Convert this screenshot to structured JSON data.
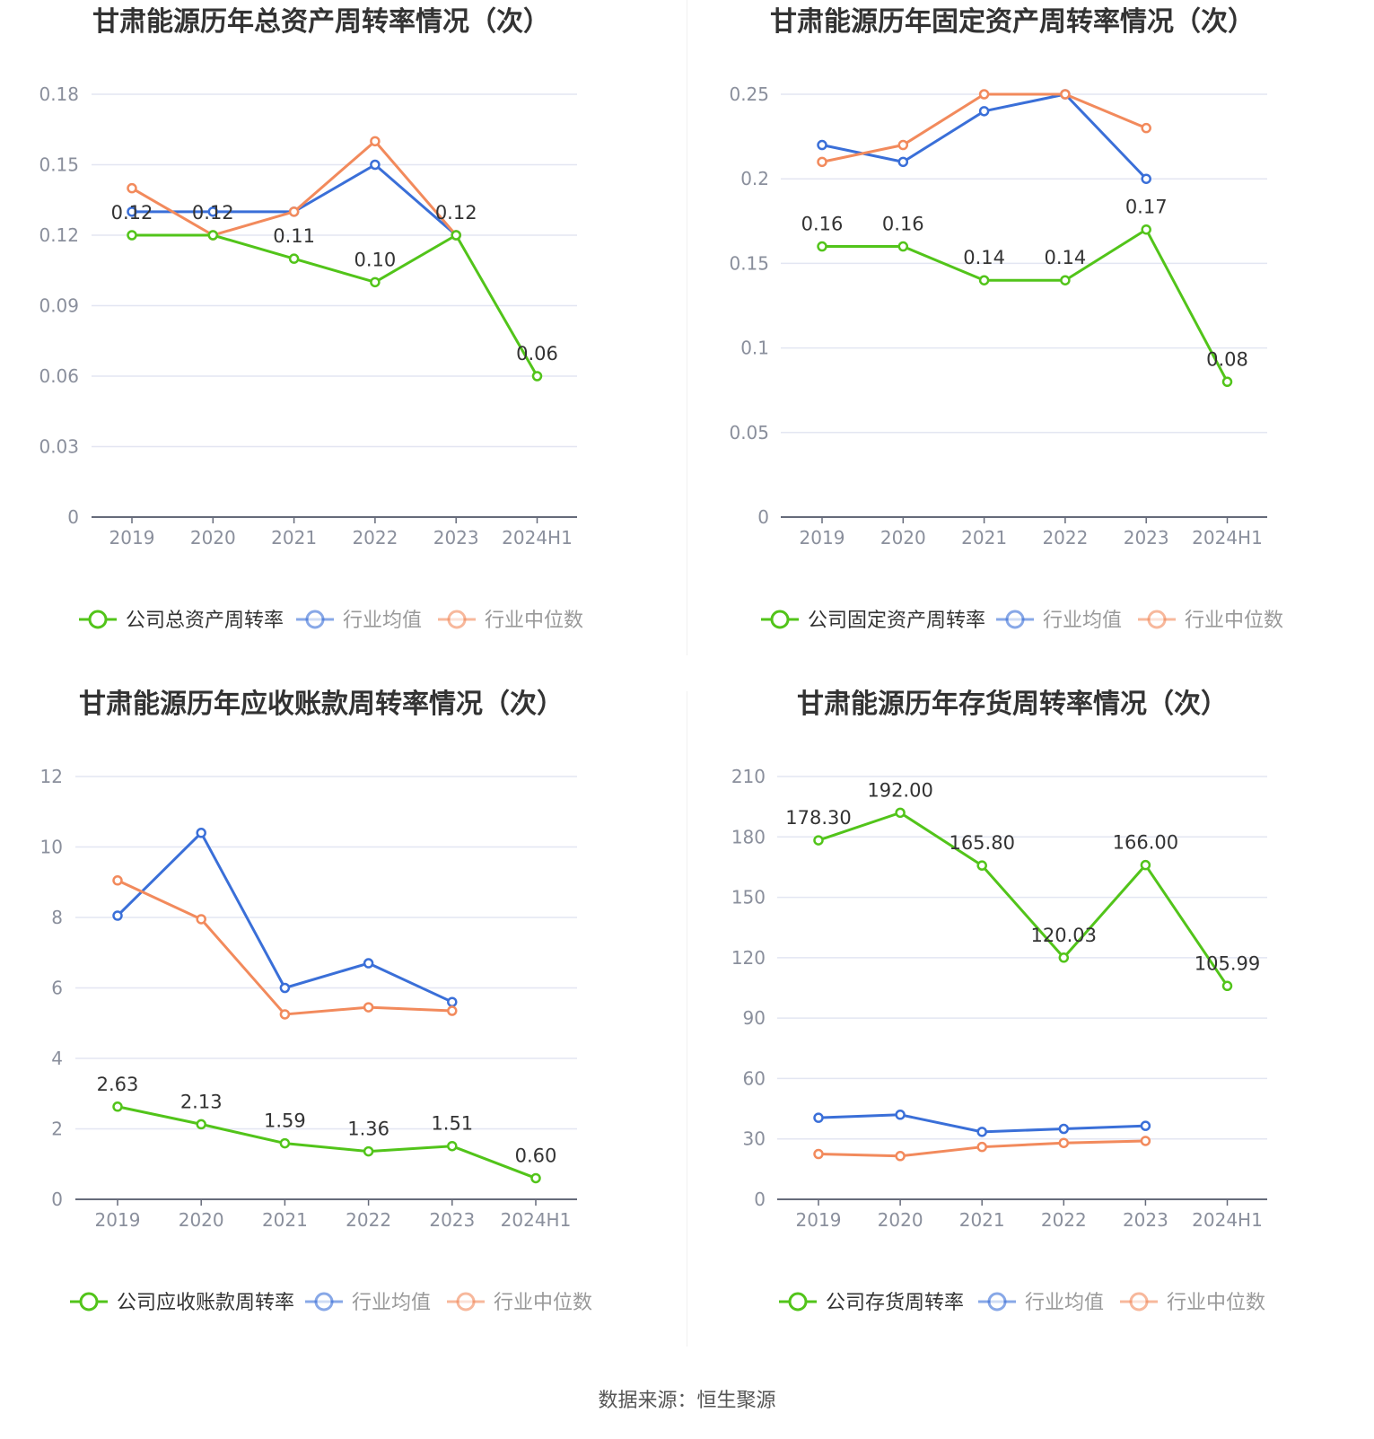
{
  "source_label": "数据来源：恒生聚源",
  "colors": {
    "company": "#52c41a",
    "avg": "#3a6fd8",
    "median": "#f28a5c",
    "grid": "#e3e6f2",
    "axis": "#666b7a",
    "tick": "#8a8f9c"
  },
  "chart_data": [
    {
      "type": "line",
      "title": "甘肃能源历年总资产周转率情况（次）",
      "categories": [
        "2019",
        "2020",
        "2021",
        "2022",
        "2023",
        "2024H1"
      ],
      "ylim": [
        0,
        0.18
      ],
      "yticks": [
        "0",
        "0.03",
        "0.06",
        "0.09",
        "0.12",
        "0.15",
        "0.18"
      ],
      "series": [
        {
          "name": "公司总资产周转率",
          "values": [
            0.12,
            0.12,
            0.11,
            0.1,
            0.12,
            0.06
          ],
          "labels": [
            "0.12",
            "0.12",
            "0.11",
            "0.10",
            "0.12",
            "0.06"
          ]
        },
        {
          "name": "行业均值",
          "values": [
            0.13,
            0.13,
            0.13,
            0.15,
            0.12,
            null
          ]
        },
        {
          "name": "行业中位数",
          "values": [
            0.14,
            0.12,
            0.13,
            0.16,
            0.12,
            null
          ]
        }
      ]
    },
    {
      "type": "line",
      "title": "甘肃能源历年固定资产周转率情况（次）",
      "categories": [
        "2019",
        "2020",
        "2021",
        "2022",
        "2023",
        "2024H1"
      ],
      "ylim": [
        0,
        0.25
      ],
      "yticks": [
        "0",
        "0.05",
        "0.1",
        "0.15",
        "0.2",
        "0.25"
      ],
      "series": [
        {
          "name": "公司固定资产周转率",
          "values": [
            0.16,
            0.16,
            0.14,
            0.14,
            0.17,
            0.08
          ],
          "labels": [
            "0.16",
            "0.16",
            "0.14",
            "0.14",
            "0.17",
            "0.08"
          ]
        },
        {
          "name": "行业均值",
          "values": [
            0.22,
            0.21,
            0.24,
            0.25,
            0.2,
            null
          ]
        },
        {
          "name": "行业中位数",
          "values": [
            0.21,
            0.22,
            0.25,
            0.25,
            0.23,
            null
          ]
        }
      ]
    },
    {
      "type": "line",
      "title": "甘肃能源历年应收账款周转率情况（次）",
      "categories": [
        "2019",
        "2020",
        "2021",
        "2022",
        "2023",
        "2024H1"
      ],
      "ylim": [
        0,
        12
      ],
      "yticks": [
        "0",
        "2",
        "4",
        "6",
        "8",
        "10",
        "12"
      ],
      "series": [
        {
          "name": "公司应收账款周转率",
          "values": [
            2.63,
            2.13,
            1.59,
            1.36,
            1.51,
            0.6
          ],
          "labels": [
            "2.63",
            "2.13",
            "1.59",
            "1.36",
            "1.51",
            "0.60"
          ]
        },
        {
          "name": "行业均值",
          "values": [
            8.05,
            10.4,
            6.0,
            6.7,
            5.6,
            null
          ]
        },
        {
          "name": "行业中位数",
          "values": [
            9.05,
            7.95,
            5.25,
            5.45,
            5.35,
            null
          ]
        }
      ]
    },
    {
      "type": "line",
      "title": "甘肃能源历年存货周转率情况（次）",
      "categories": [
        "2019",
        "2020",
        "2021",
        "2022",
        "2023",
        "2024H1"
      ],
      "ylim": [
        0,
        210
      ],
      "yticks": [
        "0",
        "30",
        "60",
        "90",
        "120",
        "150",
        "180",
        "210"
      ],
      "series": [
        {
          "name": "公司存货周转率",
          "values": [
            178.3,
            192.0,
            165.8,
            120.03,
            166.0,
            105.99
          ],
          "labels": [
            "178.30",
            "192.00",
            "165.80",
            "120.03",
            "166.00",
            "105.99"
          ]
        },
        {
          "name": "行业均值",
          "values": [
            40.5,
            42.0,
            33.5,
            35.0,
            36.5,
            null
          ]
        },
        {
          "name": "行业中位数",
          "values": [
            22.5,
            21.5,
            26.0,
            28.0,
            29.0,
            null
          ]
        }
      ]
    }
  ]
}
